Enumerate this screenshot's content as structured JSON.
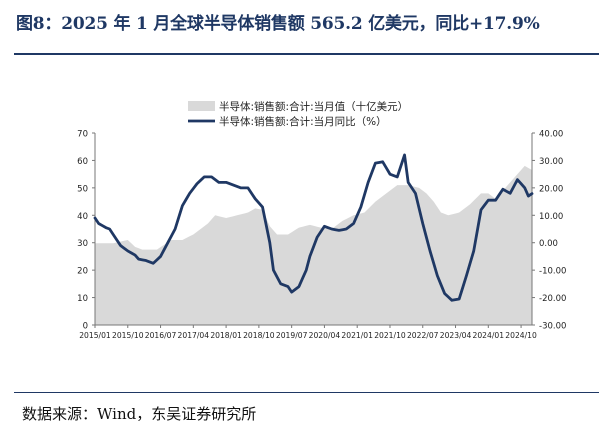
{
  "header": {
    "title": "图8：2025 年 1 月全球半导体销售额 565.2 亿美元，同比+17.9%"
  },
  "footer": {
    "source": "数据来源：Wind，东吴证券研究所"
  },
  "colors": {
    "title": "#1f3864",
    "area_fill": "#d9d9d9",
    "line": "#1f3864"
  },
  "chart_data": {
    "type": "area",
    "legend_position": "top-center",
    "grid": false,
    "y_left": {
      "range": [
        0,
        70
      ],
      "ticks": [
        0,
        10,
        20,
        30,
        40,
        50,
        60,
        70
      ],
      "tick_labels": [
        "0",
        "10",
        "20",
        "30",
        "40",
        "50",
        "60",
        "70"
      ]
    },
    "y_right": {
      "range": [
        -30,
        40
      ],
      "ticks": [
        -30,
        -20,
        -10,
        0,
        10,
        20,
        30,
        40
      ],
      "tick_labels": [
        "-30.00",
        "-20.00",
        "-10.00",
        "0.00",
        "10.00",
        "20.00",
        "30.00",
        "40.00"
      ]
    },
    "x_tick_labels": [
      "2015/01",
      "2015/10",
      "2016/07",
      "2017/04",
      "2018/01",
      "2018/10",
      "2019/07",
      "2020/04",
      "2021/01",
      "2021/10",
      "2022/07",
      "2023/04",
      "2024/01",
      "2024/10"
    ],
    "x_start": "2015/01",
    "x_end": "2025/01",
    "series": [
      {
        "name": "半导体:销售额:合计:当月值（十亿美元）",
        "kind": "area",
        "axis": "left",
        "anchors": [
          [
            "2015/01",
            29.8
          ],
          [
            "2015/06",
            29.8
          ],
          [
            "2015/10",
            31
          ],
          [
            "2015/12",
            28.5
          ],
          [
            "2016/02",
            27.5
          ],
          [
            "2016/06",
            27.5
          ],
          [
            "2016/10",
            31
          ],
          [
            "2017/01",
            31
          ],
          [
            "2017/04",
            33
          ],
          [
            "2017/08",
            37
          ],
          [
            "2017/10",
            40
          ],
          [
            "2018/01",
            39
          ],
          [
            "2018/04",
            40
          ],
          [
            "2018/07",
            41
          ],
          [
            "2018/09",
            42.5
          ],
          [
            "2018/11",
            42
          ],
          [
            "2019/01",
            36
          ],
          [
            "2019/03",
            33
          ],
          [
            "2019/06",
            33
          ],
          [
            "2019/09",
            35.5
          ],
          [
            "2019/12",
            36.5
          ],
          [
            "2020/03",
            35.5
          ],
          [
            "2020/06",
            35
          ],
          [
            "2020/09",
            38
          ],
          [
            "2020/12",
            40
          ],
          [
            "2021/03",
            41
          ],
          [
            "2021/06",
            45
          ],
          [
            "2021/09",
            48
          ],
          [
            "2021/12",
            51
          ],
          [
            "2022/03",
            51
          ],
          [
            "2022/06",
            50
          ],
          [
            "2022/08",
            48
          ],
          [
            "2022/10",
            45
          ],
          [
            "2022/12",
            41
          ],
          [
            "2023/02",
            40
          ],
          [
            "2023/05",
            41
          ],
          [
            "2023/08",
            44
          ],
          [
            "2023/11",
            48
          ],
          [
            "2024/01",
            48
          ],
          [
            "2024/03",
            46
          ],
          [
            "2024/05",
            49
          ],
          [
            "2024/07",
            52
          ],
          [
            "2024/09",
            55
          ],
          [
            "2024/11",
            58
          ],
          [
            "2025/01",
            56.5
          ]
        ]
      },
      {
        "name": "半导体:销售额:合计:当月同比（%）",
        "kind": "line",
        "axis": "right",
        "anchors": [
          [
            "2015/01",
            9
          ],
          [
            "2015/02",
            7
          ],
          [
            "2015/04",
            5.5
          ],
          [
            "2015/05",
            5
          ],
          [
            "2015/06",
            3
          ],
          [
            "2015/07",
            1
          ],
          [
            "2015/08",
            -1
          ],
          [
            "2015/10",
            -3
          ],
          [
            "2015/12",
            -4.5
          ],
          [
            "2016/01",
            -6
          ],
          [
            "2016/03",
            -6.5
          ],
          [
            "2016/05",
            -7.5
          ],
          [
            "2016/07",
            -5
          ],
          [
            "2016/09",
            0
          ],
          [
            "2016/11",
            5
          ],
          [
            "2017/01",
            13.5
          ],
          [
            "2017/03",
            18
          ],
          [
            "2017/05",
            21.5
          ],
          [
            "2017/07",
            24
          ],
          [
            "2017/09",
            24
          ],
          [
            "2017/11",
            22
          ],
          [
            "2018/01",
            22
          ],
          [
            "2018/03",
            21
          ],
          [
            "2018/05",
            20
          ],
          [
            "2018/07",
            20
          ],
          [
            "2018/09",
            16
          ],
          [
            "2018/11",
            13
          ],
          [
            "2019/01",
            0
          ],
          [
            "2019/02",
            -10
          ],
          [
            "2019/04",
            -15
          ],
          [
            "2019/06",
            -16
          ],
          [
            "2019/07",
            -18
          ],
          [
            "2019/09",
            -16
          ],
          [
            "2019/11",
            -10
          ],
          [
            "2019/12",
            -5
          ],
          [
            "2020/02",
            2
          ],
          [
            "2020/04",
            6
          ],
          [
            "2020/06",
            5
          ],
          [
            "2020/08",
            4.5
          ],
          [
            "2020/10",
            5
          ],
          [
            "2020/12",
            7
          ],
          [
            "2021/02",
            13
          ],
          [
            "2021/04",
            22
          ],
          [
            "2021/06",
            29
          ],
          [
            "2021/08",
            29.5
          ],
          [
            "2021/10",
            25
          ],
          [
            "2021/12",
            24
          ],
          [
            "2022/02",
            32
          ],
          [
            "2022/03",
            22
          ],
          [
            "2022/05",
            18
          ],
          [
            "2022/07",
            7
          ],
          [
            "2022/09",
            -3
          ],
          [
            "2022/11",
            -12
          ],
          [
            "2023/01",
            -18.5
          ],
          [
            "2023/03",
            -21
          ],
          [
            "2023/05",
            -20.5
          ],
          [
            "2023/07",
            -12
          ],
          [
            "2023/09",
            -3
          ],
          [
            "2023/11",
            12
          ],
          [
            "2024/01",
            15.5
          ],
          [
            "2024/03",
            15.5
          ],
          [
            "2024/05",
            19.5
          ],
          [
            "2024/07",
            18
          ],
          [
            "2024/09",
            23
          ],
          [
            "2024/11",
            20
          ],
          [
            "2024/12",
            17
          ],
          [
            "2025/01",
            17.9
          ]
        ]
      }
    ]
  }
}
